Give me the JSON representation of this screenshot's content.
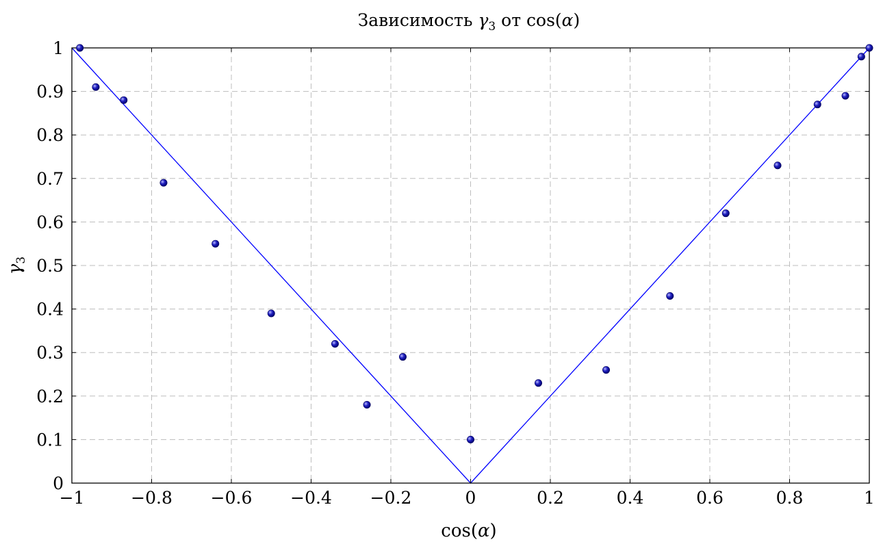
{
  "chart_data": {
    "type": "scatter",
    "title": "Зависимость γ₃ от cos(α)",
    "title_parts": {
      "prefix": "Зависимость ",
      "symbol": "γ",
      "subscript": "3",
      "middle": " от ",
      "func": "cos(",
      "arg": "α",
      "close": ")"
    },
    "xlabel": "cos(α)",
    "ylabel": "γ₃",
    "xlim": [
      -1,
      1
    ],
    "ylim": [
      0,
      1
    ],
    "x_ticks": [
      -1,
      -0.8,
      -0.6,
      -0.4,
      -0.2,
      0,
      0.2,
      0.4,
      0.6,
      0.8,
      1
    ],
    "x_tick_labels": [
      "−1",
      "−0.8",
      "−0.6",
      "−0.4",
      "−0.2",
      "0",
      "0.2",
      "0.4",
      "0.6",
      "0.8",
      "1"
    ],
    "y_ticks": [
      0,
      0.1,
      0.2,
      0.3,
      0.4,
      0.5,
      0.6,
      0.7,
      0.8,
      0.9,
      1
    ],
    "y_tick_labels": [
      "0",
      "0.1",
      "0.2",
      "0.3",
      "0.4",
      "0.5",
      "0.6",
      "0.7",
      "0.8",
      "0.9",
      "1"
    ],
    "grid": true,
    "series": [
      {
        "type": "scatter",
        "color": "#1f1fbf",
        "x": [
          -0.98,
          -0.94,
          -0.87,
          -0.77,
          -0.64,
          -0.5,
          -0.34,
          -0.26,
          -0.17,
          0.0,
          0.17,
          0.34,
          0.5,
          0.64,
          0.77,
          0.87,
          0.94,
          0.98,
          1.0
        ],
        "y": [
          1.0,
          0.91,
          0.88,
          0.69,
          0.55,
          0.39,
          0.32,
          0.18,
          0.29,
          0.1,
          0.23,
          0.26,
          0.43,
          0.62,
          0.73,
          0.87,
          0.89,
          0.98,
          1.0
        ]
      },
      {
        "type": "line",
        "color": "#0000ff",
        "x": [
          -1,
          0,
          1
        ],
        "y": [
          1,
          0,
          1
        ]
      }
    ]
  }
}
